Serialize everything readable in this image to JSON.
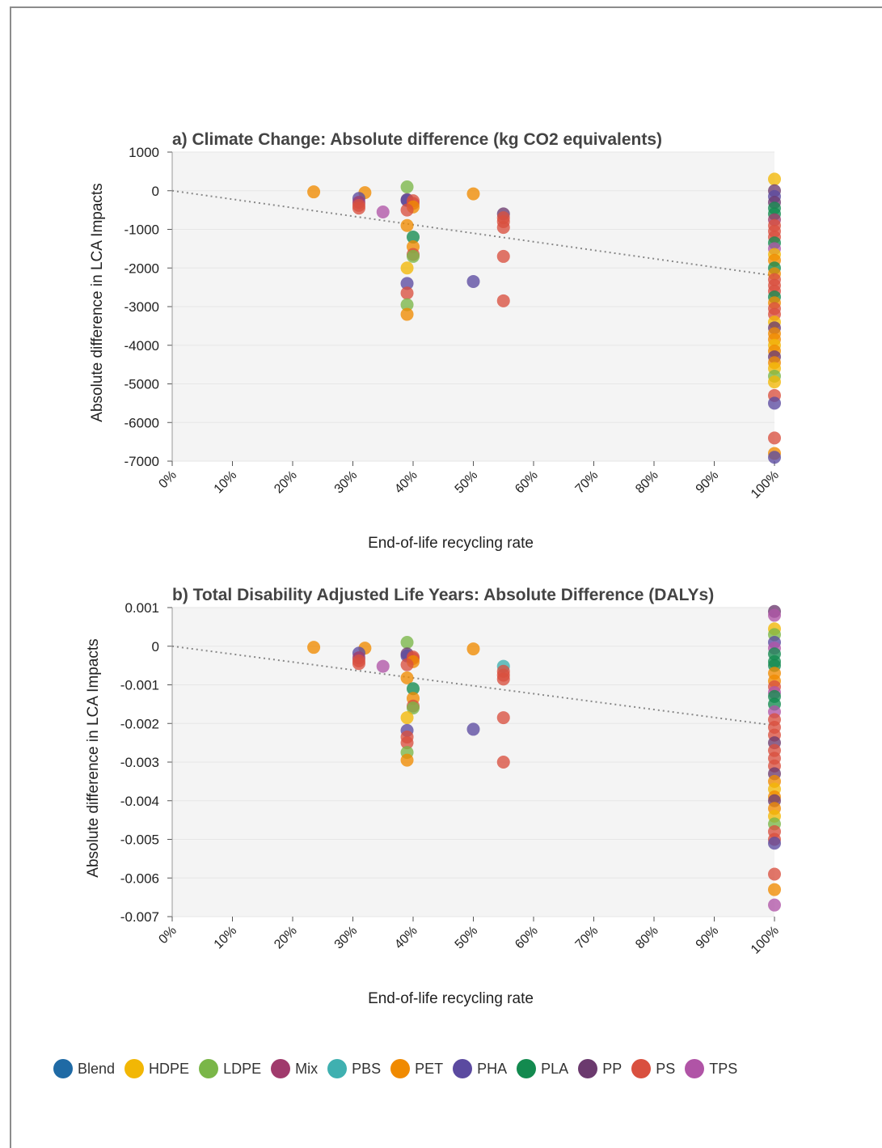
{
  "chart_data": [
    {
      "type": "scatter",
      "title": "a) Climate Change: Absolute difference (kg CO2 equivalents)",
      "xlabel": "End-of-life recycling rate",
      "ylabel": "Absolute difference in LCA Impacts",
      "xlim": [
        0,
        100
      ],
      "ylim": [
        -7000,
        1000
      ],
      "x_ticks": [
        "0%",
        "10%",
        "20%",
        "30%",
        "40%",
        "50%",
        "60%",
        "70%",
        "80%",
        "90%",
        "100%"
      ],
      "y_ticks": [
        "1000",
        "0",
        "-1000",
        "-2000",
        "-3000",
        "-4000",
        "-5000",
        "-6000",
        "-7000"
      ],
      "y_tick_values": [
        1000,
        0,
        -1000,
        -2000,
        -3000,
        -4000,
        -5000,
        -6000,
        -7000
      ],
      "grid": true,
      "trendline": {
        "style": "dotted",
        "x": [
          0,
          100
        ],
        "y": [
          0,
          -2200
        ]
      },
      "points": [
        {
          "x": 23.5,
          "y": -30,
          "s": "PET"
        },
        {
          "x": 32,
          "y": -50,
          "s": "PET"
        },
        {
          "x": 31,
          "y": -200,
          "s": "PHA"
        },
        {
          "x": 31,
          "y": -300,
          "s": "Mix"
        },
        {
          "x": 31,
          "y": -380,
          "s": "PS"
        },
        {
          "x": 31,
          "y": -450,
          "s": "PS"
        },
        {
          "x": 35,
          "y": -550,
          "s": "TPS"
        },
        {
          "x": 39,
          "y": 100,
          "s": "LDPE"
        },
        {
          "x": 39,
          "y": -230,
          "s": "PP"
        },
        {
          "x": 39,
          "y": -250,
          "s": "PHA"
        },
        {
          "x": 40,
          "y": -260,
          "s": "PS"
        },
        {
          "x": 40,
          "y": -330,
          "s": "PS"
        },
        {
          "x": 40,
          "y": -420,
          "s": "PET"
        },
        {
          "x": 39,
          "y": -500,
          "s": "PS"
        },
        {
          "x": 39,
          "y": -900,
          "s": "PET"
        },
        {
          "x": 40,
          "y": -1200,
          "s": "PLA"
        },
        {
          "x": 40,
          "y": -1450,
          "s": "PET"
        },
        {
          "x": 40,
          "y": -1650,
          "s": "PS"
        },
        {
          "x": 40,
          "y": -1700,
          "s": "LDPE"
        },
        {
          "x": 39,
          "y": -2000,
          "s": "HDPE"
        },
        {
          "x": 39,
          "y": -2400,
          "s": "PHA"
        },
        {
          "x": 39,
          "y": -2650,
          "s": "PS"
        },
        {
          "x": 39,
          "y": -2950,
          "s": "LDPE"
        },
        {
          "x": 39,
          "y": -3200,
          "s": "PET"
        },
        {
          "x": 50,
          "y": -80,
          "s": "PET"
        },
        {
          "x": 50,
          "y": -2350,
          "s": "PHA"
        },
        {
          "x": 55,
          "y": -600,
          "s": "PP"
        },
        {
          "x": 55,
          "y": -700,
          "s": "PS"
        },
        {
          "x": 55,
          "y": -800,
          "s": "PS"
        },
        {
          "x": 55,
          "y": -950,
          "s": "PS"
        },
        {
          "x": 55,
          "y": -1700,
          "s": "PS"
        },
        {
          "x": 55,
          "y": -2850,
          "s": "PS"
        },
        {
          "x": 100,
          "y": 300,
          "s": "HDPE"
        },
        {
          "x": 100,
          "y": 0,
          "s": "PP"
        },
        {
          "x": 100,
          "y": -150,
          "s": "PHA"
        },
        {
          "x": 100,
          "y": -300,
          "s": "PP"
        },
        {
          "x": 100,
          "y": -450,
          "s": "PLA"
        },
        {
          "x": 100,
          "y": -600,
          "s": "PLA"
        },
        {
          "x": 100,
          "y": -750,
          "s": "Mix"
        },
        {
          "x": 100,
          "y": -900,
          "s": "PS"
        },
        {
          "x": 100,
          "y": -1050,
          "s": "PS"
        },
        {
          "x": 100,
          "y": -1200,
          "s": "PS"
        },
        {
          "x": 100,
          "y": -1350,
          "s": "PLA"
        },
        {
          "x": 100,
          "y": -1500,
          "s": "TPS"
        },
        {
          "x": 100,
          "y": -1650,
          "s": "HDPE"
        },
        {
          "x": 100,
          "y": -1800,
          "s": "PET"
        },
        {
          "x": 100,
          "y": -2000,
          "s": "PLA"
        },
        {
          "x": 100,
          "y": -2150,
          "s": "PET"
        },
        {
          "x": 100,
          "y": -2300,
          "s": "PS"
        },
        {
          "x": 100,
          "y": -2450,
          "s": "PS"
        },
        {
          "x": 100,
          "y": -2600,
          "s": "PS"
        },
        {
          "x": 100,
          "y": -2750,
          "s": "PLA"
        },
        {
          "x": 100,
          "y": -2900,
          "s": "PET"
        },
        {
          "x": 100,
          "y": -3050,
          "s": "PS"
        },
        {
          "x": 100,
          "y": -3200,
          "s": "PS"
        },
        {
          "x": 100,
          "y": -3400,
          "s": "HDPE"
        },
        {
          "x": 100,
          "y": -3550,
          "s": "PP"
        },
        {
          "x": 100,
          "y": -3700,
          "s": "PET"
        },
        {
          "x": 100,
          "y": -3850,
          "s": "PET"
        },
        {
          "x": 100,
          "y": -4000,
          "s": "HDPE"
        },
        {
          "x": 100,
          "y": -4150,
          "s": "PET"
        },
        {
          "x": 100,
          "y": -4300,
          "s": "PP"
        },
        {
          "x": 100,
          "y": -4450,
          "s": "PET"
        },
        {
          "x": 100,
          "y": -4600,
          "s": "HDPE"
        },
        {
          "x": 100,
          "y": -4800,
          "s": "LDPE"
        },
        {
          "x": 100,
          "y": -4950,
          "s": "HDPE"
        },
        {
          "x": 100,
          "y": -5300,
          "s": "PS"
        },
        {
          "x": 100,
          "y": -5500,
          "s": "PHA"
        },
        {
          "x": 100,
          "y": -6400,
          "s": "PS"
        },
        {
          "x": 100,
          "y": -6800,
          "s": "PET"
        },
        {
          "x": 100,
          "y": -6900,
          "s": "PHA"
        }
      ]
    },
    {
      "type": "scatter",
      "title": "b) Total Disability Adjusted Life Years: Absolute Difference (DALYs)",
      "xlabel": "End-of-life recycling rate",
      "ylabel": "Absolute difference in LCA Impacts",
      "xlim": [
        0,
        100
      ],
      "ylim": [
        -0.007,
        0.001
      ],
      "x_ticks": [
        "0%",
        "10%",
        "20%",
        "30%",
        "40%",
        "50%",
        "60%",
        "70%",
        "80%",
        "90%",
        "100%"
      ],
      "y_ticks": [
        "0.001",
        "0",
        "-0.001",
        "-0.002",
        "-0.003",
        "-0.004",
        "-0.005",
        "-0.006",
        "-0.007"
      ],
      "y_tick_values": [
        0.001,
        0,
        -0.001,
        -0.002,
        -0.003,
        -0.004,
        -0.005,
        -0.006,
        -0.007
      ],
      "grid": true,
      "trendline": {
        "style": "dotted",
        "x": [
          0,
          100
        ],
        "y": [
          0,
          -0.00205
        ]
      },
      "points": [
        {
          "x": 23.5,
          "y": -3e-05,
          "s": "PET"
        },
        {
          "x": 32,
          "y": -5e-05,
          "s": "PET"
        },
        {
          "x": 31,
          "y": -0.00018,
          "s": "PHA"
        },
        {
          "x": 31,
          "y": -0.0003,
          "s": "Mix"
        },
        {
          "x": 31,
          "y": -0.00038,
          "s": "PS"
        },
        {
          "x": 31,
          "y": -0.00045,
          "s": "PS"
        },
        {
          "x": 35,
          "y": -0.00052,
          "s": "TPS"
        },
        {
          "x": 39,
          "y": 0.0001,
          "s": "LDPE"
        },
        {
          "x": 39,
          "y": -0.0002,
          "s": "PP"
        },
        {
          "x": 39,
          "y": -0.00025,
          "s": "PHA"
        },
        {
          "x": 40,
          "y": -0.00028,
          "s": "PS"
        },
        {
          "x": 40,
          "y": -0.00032,
          "s": "PS"
        },
        {
          "x": 40,
          "y": -0.0004,
          "s": "PET"
        },
        {
          "x": 39,
          "y": -0.00048,
          "s": "PS"
        },
        {
          "x": 39,
          "y": -0.00082,
          "s": "PET"
        },
        {
          "x": 40,
          "y": -0.0011,
          "s": "PLA"
        },
        {
          "x": 40,
          "y": -0.00135,
          "s": "PET"
        },
        {
          "x": 40,
          "y": -0.00155,
          "s": "PS"
        },
        {
          "x": 40,
          "y": -0.0016,
          "s": "LDPE"
        },
        {
          "x": 39,
          "y": -0.00185,
          "s": "HDPE"
        },
        {
          "x": 39,
          "y": -0.00218,
          "s": "PHA"
        },
        {
          "x": 39,
          "y": -0.00235,
          "s": "PS"
        },
        {
          "x": 39,
          "y": -0.0025,
          "s": "PS"
        },
        {
          "x": 39,
          "y": -0.00275,
          "s": "LDPE"
        },
        {
          "x": 39,
          "y": -0.00295,
          "s": "PET"
        },
        {
          "x": 50,
          "y": -7e-05,
          "s": "PET"
        },
        {
          "x": 50,
          "y": -0.00215,
          "s": "PHA"
        },
        {
          "x": 55,
          "y": -0.00052,
          "s": "PBS"
        },
        {
          "x": 55,
          "y": -0.00065,
          "s": "PS"
        },
        {
          "x": 55,
          "y": -0.00075,
          "s": "PS"
        },
        {
          "x": 55,
          "y": -0.00085,
          "s": "PS"
        },
        {
          "x": 55,
          "y": -0.00185,
          "s": "PS"
        },
        {
          "x": 55,
          "y": -0.003,
          "s": "PS"
        },
        {
          "x": 100,
          "y": 0.0009,
          "s": "PP"
        },
        {
          "x": 100,
          "y": 0.0008,
          "s": "TPS"
        },
        {
          "x": 100,
          "y": 0.00045,
          "s": "HDPE"
        },
        {
          "x": 100,
          "y": 0.0003,
          "s": "LDPE"
        },
        {
          "x": 100,
          "y": 0.0001,
          "s": "PHA"
        },
        {
          "x": 100,
          "y": -5e-05,
          "s": "TPS"
        },
        {
          "x": 100,
          "y": -0.0002,
          "s": "PLA"
        },
        {
          "x": 100,
          "y": -0.0004,
          "s": "PLA"
        },
        {
          "x": 100,
          "y": -0.0005,
          "s": "PLA"
        },
        {
          "x": 100,
          "y": -0.0007,
          "s": "PET"
        },
        {
          "x": 100,
          "y": -0.0009,
          "s": "PET"
        },
        {
          "x": 100,
          "y": -0.00105,
          "s": "PS"
        },
        {
          "x": 100,
          "y": -0.0012,
          "s": "TPS"
        },
        {
          "x": 100,
          "y": -0.0013,
          "s": "PLA"
        },
        {
          "x": 100,
          "y": -0.0015,
          "s": "PLA"
        },
        {
          "x": 100,
          "y": -0.0017,
          "s": "TPS"
        },
        {
          "x": 100,
          "y": -0.0019,
          "s": "PS"
        },
        {
          "x": 100,
          "y": -0.0021,
          "s": "PS"
        },
        {
          "x": 100,
          "y": -0.0023,
          "s": "PS"
        },
        {
          "x": 100,
          "y": -0.0025,
          "s": "PP"
        },
        {
          "x": 100,
          "y": -0.0027,
          "s": "PS"
        },
        {
          "x": 100,
          "y": -0.0029,
          "s": "PS"
        },
        {
          "x": 100,
          "y": -0.0031,
          "s": "PS"
        },
        {
          "x": 100,
          "y": -0.0033,
          "s": "PP"
        },
        {
          "x": 100,
          "y": -0.0035,
          "s": "PET"
        },
        {
          "x": 100,
          "y": -0.0037,
          "s": "HDPE"
        },
        {
          "x": 100,
          "y": -0.0039,
          "s": "PET"
        },
        {
          "x": 100,
          "y": -0.004,
          "s": "PP"
        },
        {
          "x": 100,
          "y": -0.0042,
          "s": "PET"
        },
        {
          "x": 100,
          "y": -0.0044,
          "s": "HDPE"
        },
        {
          "x": 100,
          "y": -0.0046,
          "s": "LDPE"
        },
        {
          "x": 100,
          "y": -0.0048,
          "s": "PS"
        },
        {
          "x": 100,
          "y": -0.005,
          "s": "PS"
        },
        {
          "x": 100,
          "y": -0.0051,
          "s": "PHA"
        },
        {
          "x": 100,
          "y": -0.0059,
          "s": "PS"
        },
        {
          "x": 100,
          "y": -0.0063,
          "s": "PET"
        },
        {
          "x": 100,
          "y": -0.0067,
          "s": "TPS"
        }
      ]
    }
  ],
  "legend": {
    "items": [
      {
        "label": "Blend",
        "color": "#1f6aa5"
      },
      {
        "label": "HDPE",
        "color": "#f2b705"
      },
      {
        "label": "LDPE",
        "color": "#7ab648"
      },
      {
        "label": "Mix",
        "color": "#a03a6c"
      },
      {
        "label": "PBS",
        "color": "#3fb0b0"
      },
      {
        "label": "PET",
        "color": "#f08a00"
      },
      {
        "label": "PHA",
        "color": "#5b4aa0"
      },
      {
        "label": "PLA",
        "color": "#138a4f"
      },
      {
        "label": "PP",
        "color": "#6b3a6e"
      },
      {
        "label": "PS",
        "color": "#d9503f"
      },
      {
        "label": "TPS",
        "color": "#b054a6"
      }
    ]
  }
}
